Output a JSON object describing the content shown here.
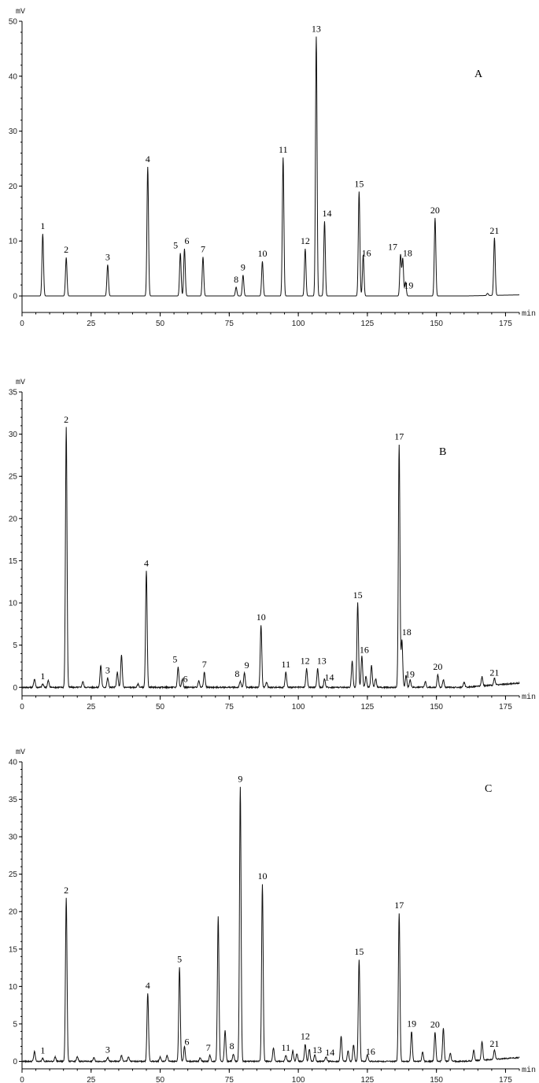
{
  "chart_data": [
    {
      "type": "line",
      "panel_label": "A",
      "ylabel": "mV",
      "xlabel": "min",
      "xlim": [
        0,
        180
      ],
      "ylim": [
        -3,
        50
      ],
      "xticks": [
        0,
        25,
        50,
        75,
        100,
        125,
        150,
        175
      ],
      "yticks": [
        0,
        10,
        20,
        30,
        40,
        50
      ],
      "peaks": [
        {
          "label": "1",
          "x": 7.5,
          "y": 11.3
        },
        {
          "label": "2",
          "x": 16.0,
          "y": 7.0
        },
        {
          "label": "3",
          "x": 31.0,
          "y": 5.7
        },
        {
          "label": "4",
          "x": 45.5,
          "y": 23.5
        },
        {
          "label": "5",
          "x": 57.3,
          "y": 7.8
        },
        {
          "label": "6",
          "x": 58.8,
          "y": 8.6
        },
        {
          "label": "7",
          "x": 65.5,
          "y": 7.1
        },
        {
          "label": "8",
          "x": 77.5,
          "y": 1.6
        },
        {
          "label": "9",
          "x": 80.0,
          "y": 3.8
        },
        {
          "label": "10",
          "x": 87.0,
          "y": 6.3
        },
        {
          "label": "11",
          "x": 94.5,
          "y": 25.2
        },
        {
          "label": "12",
          "x": 102.5,
          "y": 8.6
        },
        {
          "label": "13",
          "x": 106.5,
          "y": 47.2
        },
        {
          "label": "14",
          "x": 109.5,
          "y": 13.6
        },
        {
          "label": "15",
          "x": 122.0,
          "y": 19.0
        },
        {
          "label": "16",
          "x": 123.5,
          "y": 7.5
        },
        {
          "label": "17",
          "x": 137.0,
          "y": 7.5
        },
        {
          "label": "18",
          "x": 137.8,
          "y": 6.8
        },
        {
          "label": "19",
          "x": 138.8,
          "y": 2.5
        },
        {
          "label": "20",
          "x": 149.5,
          "y": 14.2
        },
        {
          "label": "21",
          "x": 171.0,
          "y": 10.5
        }
      ],
      "minor_peaks": [
        {
          "x": 168.5,
          "y": 0.4
        }
      ]
    },
    {
      "type": "line",
      "panel_label": "B",
      "ylabel": "mV",
      "xlabel": "min",
      "xlim": [
        0,
        180
      ],
      "ylim": [
        -1,
        35
      ],
      "xticks": [
        0,
        25,
        50,
        75,
        100,
        125,
        150,
        175
      ],
      "yticks": [
        0,
        5,
        10,
        15,
        20,
        25,
        30,
        35
      ],
      "peaks": [
        {
          "label": "1",
          "x": 7.5,
          "y": 0.4
        },
        {
          "label": "2",
          "x": 16.0,
          "y": 30.8
        },
        {
          "label": "3",
          "x": 31.0,
          "y": 1.1
        },
        {
          "label": "4",
          "x": 45.0,
          "y": 13.8
        },
        {
          "label": "5",
          "x": 56.5,
          "y": 2.4
        },
        {
          "label": "6",
          "x": 58.0,
          "y": 1.0
        },
        {
          "label": "7",
          "x": 66.0,
          "y": 1.8
        },
        {
          "label": "8",
          "x": 79.0,
          "y": 0.7
        },
        {
          "label": "9",
          "x": 80.5,
          "y": 1.7
        },
        {
          "label": "10",
          "x": 86.5,
          "y": 7.4
        },
        {
          "label": "11",
          "x": 95.5,
          "y": 1.8
        },
        {
          "label": "12",
          "x": 103.0,
          "y": 2.2
        },
        {
          "label": "13",
          "x": 107.0,
          "y": 2.2
        },
        {
          "label": "14",
          "x": 109.5,
          "y": 1.0
        },
        {
          "label": "15",
          "x": 121.5,
          "y": 10.0
        },
        {
          "label": "16",
          "x": 123.0,
          "y": 3.7
        },
        {
          "label": "17",
          "x": 136.5,
          "y": 28.8
        },
        {
          "label": "18",
          "x": 137.5,
          "y": 5.6
        },
        {
          "label": "19",
          "x": 139.0,
          "y": 1.4
        },
        {
          "label": "20",
          "x": 150.5,
          "y": 1.5
        },
        {
          "label": "21",
          "x": 171.0,
          "y": 0.8
        }
      ],
      "minor_peaks": [
        {
          "x": 4.5,
          "y": 1.0
        },
        {
          "x": 9.5,
          "y": 0.8
        },
        {
          "x": 22.0,
          "y": 0.7
        },
        {
          "x": 28.5,
          "y": 2.6
        },
        {
          "x": 34.5,
          "y": 1.8
        },
        {
          "x": 36.0,
          "y": 3.8
        },
        {
          "x": 42.0,
          "y": 0.4
        },
        {
          "x": 64.0,
          "y": 0.8
        },
        {
          "x": 88.5,
          "y": 0.6
        },
        {
          "x": 119.5,
          "y": 3.1
        },
        {
          "x": 124.5,
          "y": 1.3
        },
        {
          "x": 126.5,
          "y": 2.6
        },
        {
          "x": 128.0,
          "y": 1.0
        },
        {
          "x": 140.5,
          "y": 0.9
        },
        {
          "x": 146.0,
          "y": 0.7
        },
        {
          "x": 152.5,
          "y": 0.9
        },
        {
          "x": 160.0,
          "y": 0.6
        },
        {
          "x": 166.5,
          "y": 1.1
        }
      ]
    },
    {
      "type": "line",
      "panel_label": "C",
      "ylabel": "mV",
      "xlabel": "min",
      "xlim": [
        0,
        180
      ],
      "ylim": [
        -1,
        40
      ],
      "xticks": [
        0,
        25,
        50,
        75,
        100,
        125,
        150,
        175
      ],
      "yticks": [
        0,
        5,
        10,
        15,
        20,
        25,
        30,
        35,
        40
      ],
      "peaks": [
        {
          "label": "1",
          "x": 7.5,
          "y": 0.4
        },
        {
          "label": "2",
          "x": 16.0,
          "y": 21.8
        },
        {
          "label": "3",
          "x": 31.0,
          "y": 0.5
        },
        {
          "label": "4",
          "x": 45.5,
          "y": 9.1
        },
        {
          "label": "5",
          "x": 57.0,
          "y": 12.6
        },
        {
          "label": "6",
          "x": 58.8,
          "y": 2.0
        },
        {
          "label": "7",
          "x": 68.0,
          "y": 0.8
        },
        {
          "label": "8",
          "x": 76.5,
          "y": 1.0
        },
        {
          "label": "9",
          "x": 79.0,
          "y": 36.7
        },
        {
          "label": "10",
          "x": 87.0,
          "y": 23.7
        },
        {
          "label": "11",
          "x": 95.5,
          "y": 0.8
        },
        {
          "label": "12",
          "x": 102.5,
          "y": 2.3
        },
        {
          "label": "13",
          "x": 106.0,
          "y": 0.9
        },
        {
          "label": "14",
          "x": 110.0,
          "y": 0.6
        },
        {
          "label": "15",
          "x": 122.0,
          "y": 13.6
        },
        {
          "label": "16",
          "x": 125.0,
          "y": 0.9
        },
        {
          "label": "17",
          "x": 136.5,
          "y": 19.8
        },
        {
          "label": "19",
          "x": 141.0,
          "y": 4.0
        },
        {
          "label": "20",
          "x": 149.5,
          "y": 3.9
        },
        {
          "label": "21",
          "x": 171.0,
          "y": 1.3
        }
      ],
      "minor_peaks": [
        {
          "x": 4.5,
          "y": 1.3
        },
        {
          "x": 12.0,
          "y": 0.6
        },
        {
          "x": 20.0,
          "y": 0.6
        },
        {
          "x": 26.0,
          "y": 0.5
        },
        {
          "x": 36.0,
          "y": 0.8
        },
        {
          "x": 38.5,
          "y": 0.6
        },
        {
          "x": 50.0,
          "y": 0.6
        },
        {
          "x": 52.5,
          "y": 0.8
        },
        {
          "x": 64.5,
          "y": 0.5
        },
        {
          "x": 71.0,
          "y": 19.3
        },
        {
          "x": 73.5,
          "y": 4.1
        },
        {
          "x": 91.0,
          "y": 1.8
        },
        {
          "x": 98.0,
          "y": 1.4
        },
        {
          "x": 99.5,
          "y": 1.0
        },
        {
          "x": 104.0,
          "y": 1.6
        },
        {
          "x": 115.5,
          "y": 3.3
        },
        {
          "x": 118.0,
          "y": 1.4
        },
        {
          "x": 120.0,
          "y": 2.2
        },
        {
          "x": 145.0,
          "y": 1.3
        },
        {
          "x": 152.5,
          "y": 4.4
        },
        {
          "x": 155.0,
          "y": 1.1
        },
        {
          "x": 163.5,
          "y": 1.4
        },
        {
          "x": 166.5,
          "y": 2.5
        }
      ]
    }
  ]
}
